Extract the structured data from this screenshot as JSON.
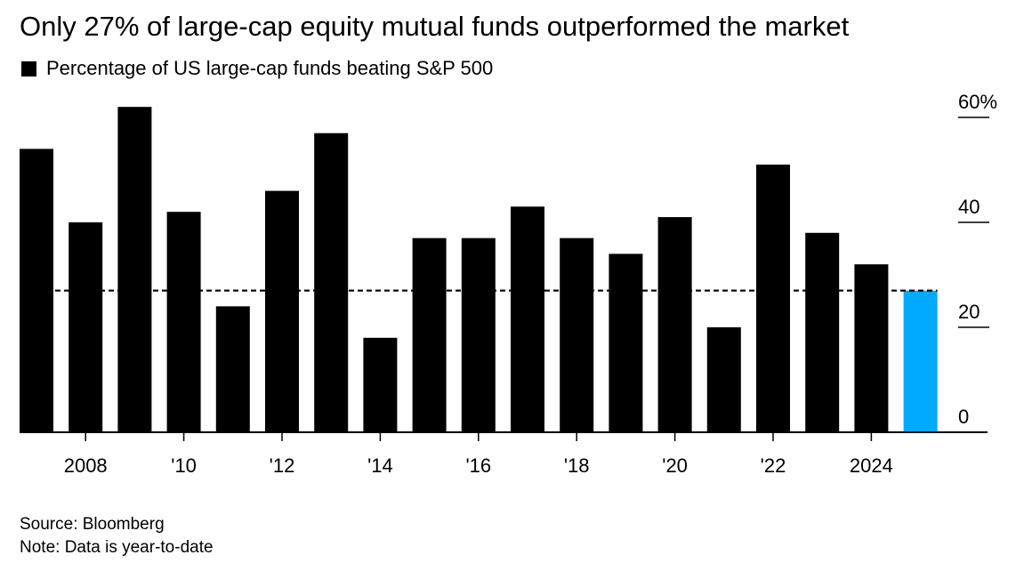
{
  "chart_data": {
    "type": "bar",
    "title": "Only 27% of large-cap equity mutual funds outperformed the market",
    "legend": [
      {
        "label": "Percentage of US large-cap funds beating S&P 500",
        "color": "#000000"
      }
    ],
    "categories": [
      "2007",
      "2008",
      "2009",
      "2010",
      "2011",
      "2012",
      "2013",
      "2014",
      "2015",
      "2016",
      "2017",
      "2018",
      "2019",
      "2020",
      "2021",
      "2022",
      "2023",
      "2024",
      "2025"
    ],
    "values": [
      54,
      40,
      62,
      42,
      24,
      46,
      57,
      18,
      37,
      37,
      43,
      37,
      34,
      41,
      20,
      51,
      38,
      32,
      27
    ],
    "highlight": {
      "category": "2025",
      "color": "#00aaff"
    },
    "bar_color": "#000000",
    "reference_line": {
      "value": 27,
      "style": "dashed",
      "color": "#000000"
    },
    "xlabel": "",
    "ylabel": "",
    "ylim": [
      0,
      62
    ],
    "y_ticks": [
      {
        "value": 0,
        "label": "0"
      },
      {
        "value": 20,
        "label": "20"
      },
      {
        "value": 40,
        "label": "40"
      },
      {
        "value": 60,
        "label": "60%"
      }
    ],
    "x_ticks": [
      {
        "category": "2008",
        "label": "2008"
      },
      {
        "category": "2010",
        "label": "'10"
      },
      {
        "category": "2012",
        "label": "'12"
      },
      {
        "category": "2014",
        "label": "'14"
      },
      {
        "category": "2016",
        "label": "'16"
      },
      {
        "category": "2018",
        "label": "'18"
      },
      {
        "category": "2020",
        "label": "'20"
      },
      {
        "category": "2022",
        "label": "'22"
      },
      {
        "category": "2024",
        "label": "2024"
      }
    ],
    "y_axis_side": "right",
    "grid": false
  },
  "footer": {
    "source": "Source: Bloomberg",
    "note": "Note: Data is year-to-date"
  }
}
